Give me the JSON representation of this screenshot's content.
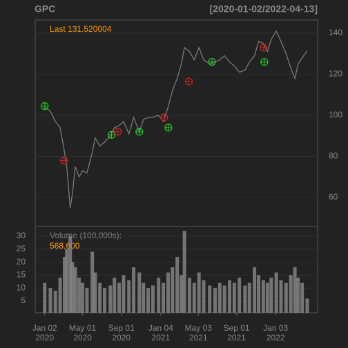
{
  "chart_data": {
    "type": "line",
    "title": "GPC",
    "subtitle": "[2020-01-02/2022-04-13]",
    "last_label": "Last 131.520004",
    "color": "#7a7a7a",
    "grid": true,
    "x": [
      "2020-01-02",
      "2020-01-20",
      "2020-02-05",
      "2020-02-20",
      "2020-03-05",
      "2020-03-12",
      "2020-03-23",
      "2020-03-30",
      "2020-04-08",
      "2020-04-20",
      "2020-05-01",
      "2020-05-15",
      "2020-06-01",
      "2020-06-10",
      "2020-06-25",
      "2020-07-10",
      "2020-07-28",
      "2020-08-10",
      "2020-08-25",
      "2020-09-08",
      "2020-09-25",
      "2020-10-10",
      "2020-10-28",
      "2020-11-10",
      "2020-11-25",
      "2020-12-10",
      "2020-12-28",
      "2021-01-12",
      "2021-01-27",
      "2021-02-10",
      "2021-02-25",
      "2021-03-10",
      "2021-03-20",
      "2021-04-05",
      "2021-04-20",
      "2021-05-05",
      "2021-05-20",
      "2021-06-08",
      "2021-06-25",
      "2021-07-10",
      "2021-07-25",
      "2021-08-10",
      "2021-08-25",
      "2021-09-10",
      "2021-09-28",
      "2021-10-12",
      "2021-10-28",
      "2021-11-10",
      "2021-11-25",
      "2021-12-08",
      "2021-12-20",
      "2022-01-05",
      "2022-01-20",
      "2022-02-05",
      "2022-02-20",
      "2022-03-05",
      "2022-03-15",
      "2022-03-28",
      "2022-04-13"
    ],
    "values": [
      104,
      102,
      97,
      94,
      82,
      75,
      55,
      62,
      75,
      70,
      73,
      72,
      82,
      89,
      85,
      87,
      90,
      94,
      95,
      97,
      91,
      99,
      92,
      98,
      99,
      99,
      100,
      97,
      104,
      112,
      118,
      125,
      133,
      131,
      127,
      133,
      127,
      125,
      126,
      127,
      129,
      126,
      124,
      121,
      122,
      126,
      129,
      136,
      135,
      131,
      137,
      141,
      136,
      130,
      123,
      118,
      125,
      128,
      131.52
    ],
    "xlim": [
      "2019-12-03",
      "2022-05-16"
    ],
    "xticks": [
      {
        "value": "2020-01-02",
        "label": "Jan 02",
        "year": "2020"
      },
      {
        "value": "2020-05-01",
        "label": "May 01",
        "year": "2020"
      },
      {
        "value": "2020-09-01",
        "label": "Sep 01",
        "year": "2020"
      },
      {
        "value": "2021-01-04",
        "label": "Jan 04",
        "year": "2021"
      },
      {
        "value": "2021-05-03",
        "label": "May 03",
        "year": "2021"
      },
      {
        "value": "2021-09-01",
        "label": "Sep 01",
        "year": "2021"
      },
      {
        "value": "2022-01-03",
        "label": "Jan 03",
        "year": "2022"
      }
    ],
    "ylim": [
      45.9,
      146.4
    ],
    "yticks": [
      60,
      80,
      100,
      120,
      140
    ],
    "buy": {
      "color": "#22cc22",
      "x": [
        "2020-01-02",
        "2020-08-01",
        "2020-10-28",
        "2021-01-28",
        "2021-06-15",
        "2021-11-28"
      ],
      "values": [
        104.5,
        90.5,
        92,
        94,
        126,
        126
      ]
    },
    "sell": {
      "color": "#cc2222",
      "x": [
        "2020-03-03",
        "2020-08-21",
        "2021-01-15",
        "2021-04-03",
        "2021-11-26"
      ],
      "values": [
        78,
        92,
        99,
        116.5,
        133
      ]
    },
    "volume": {
      "title": "Volume (100,000s):",
      "last_label": "568,600",
      "color": "#8a8a8a",
      "values": [
        12,
        10,
        9,
        14,
        22,
        25,
        30,
        20,
        18,
        14,
        12,
        10,
        24,
        16,
        12,
        10,
        11,
        14,
        12,
        15,
        13,
        18,
        16,
        12,
        10,
        11,
        14,
        12,
        16,
        18,
        22,
        15,
        32,
        14,
        12,
        16,
        13,
        11,
        10,
        12,
        11,
        13,
        12,
        14,
        11,
        12,
        18,
        15,
        13,
        12,
        14,
        16,
        13,
        12,
        15,
        18,
        14,
        12,
        6
      ],
      "ylim": [
        0.5,
        33.7
      ],
      "yticks": [
        5,
        10,
        15,
        20,
        25,
        30
      ]
    }
  }
}
